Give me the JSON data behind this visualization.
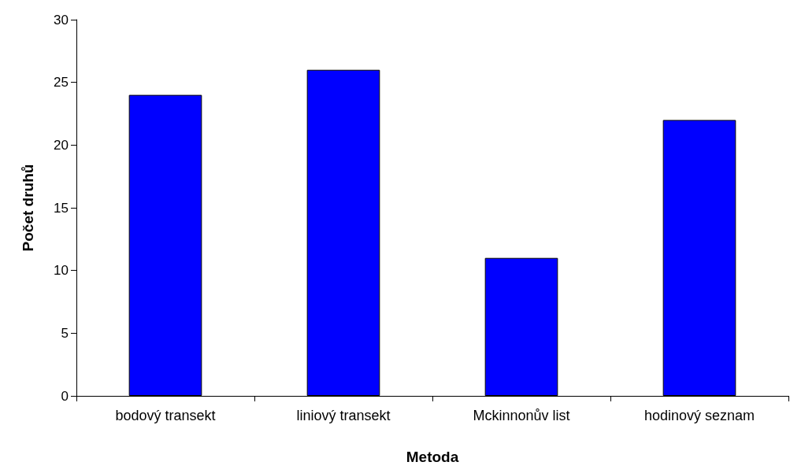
{
  "chart_data": {
    "type": "bar",
    "xlabel": "Metoda",
    "ylabel": "Počet druhů",
    "categories": [
      "bodový transekt",
      "liniový transekt",
      "Mckinnonův list",
      "hodinový seznam"
    ],
    "values": [
      24,
      26,
      11,
      22
    ],
    "color": "#0000ff",
    "ylim": [
      0,
      30
    ],
    "yticks": [
      0,
      5,
      10,
      15,
      20,
      25,
      30
    ]
  }
}
